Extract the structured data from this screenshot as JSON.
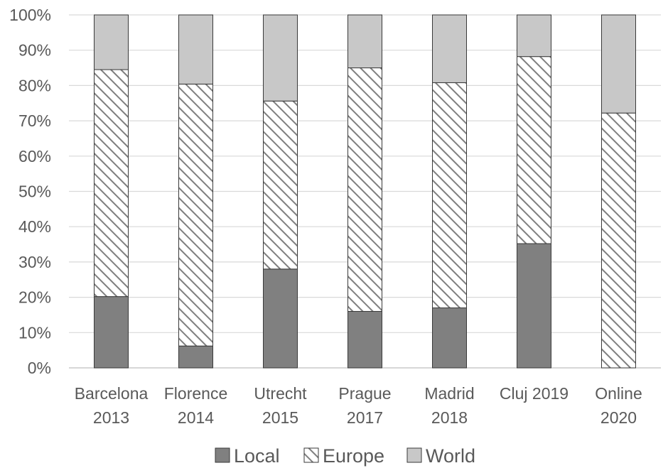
{
  "chart_data": {
    "type": "bar",
    "stacked": true,
    "normalized": true,
    "categories": [
      [
        "Barcelona",
        "2013"
      ],
      [
        "Florence",
        "2014"
      ],
      [
        "Utrecht",
        "2015"
      ],
      [
        "Prague",
        "2017"
      ],
      [
        "Madrid",
        "2018"
      ],
      [
        "Cluj 2019"
      ],
      [
        "Online",
        "2020"
      ]
    ],
    "series": [
      {
        "name": "Local",
        "values": [
          20.2,
          6.2,
          28.0,
          16.0,
          17.0,
          35.2,
          0.0
        ],
        "color": "#808080",
        "pattern": "solid"
      },
      {
        "name": "Europe",
        "values": [
          64.3,
          74.2,
          47.6,
          69.0,
          63.8,
          53.0,
          72.2
        ],
        "color": "#7f7f7f",
        "pattern": "hatch"
      },
      {
        "name": "World",
        "values": [
          15.5,
          19.6,
          24.4,
          15.0,
          19.2,
          11.8,
          27.8
        ],
        "color": "#c8c8c8",
        "pattern": "solid"
      }
    ],
    "yticks": [
      "0%",
      "10%",
      "20%",
      "30%",
      "40%",
      "50%",
      "60%",
      "70%",
      "80%",
      "90%",
      "100%"
    ],
    "ylim": [
      0,
      100
    ],
    "grid": true,
    "legend": "bottom"
  }
}
